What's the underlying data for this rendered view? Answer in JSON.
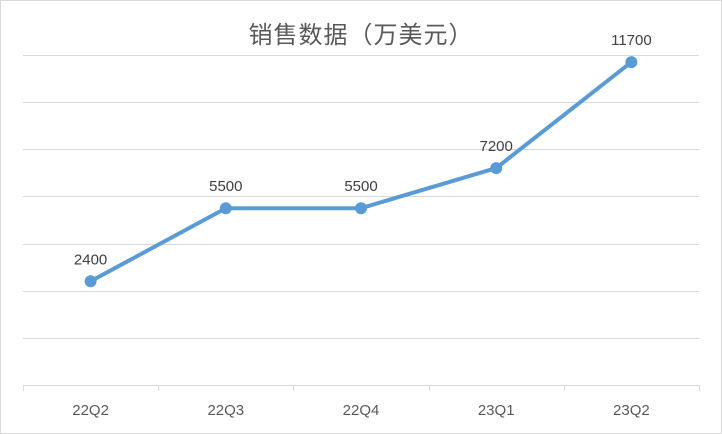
{
  "chart_data": {
    "type": "line",
    "title": "销售数据（万美元）",
    "categories": [
      "22Q2",
      "22Q3",
      "22Q4",
      "23Q1",
      "23Q2"
    ],
    "series": [
      {
        "values": [
          2400,
          5500,
          5500,
          7200,
          11700
        ]
      }
    ],
    "data_labels": [
      "2400",
      "5500",
      "5500",
      "7200",
      "11700"
    ],
    "xlabel": "",
    "ylabel": "",
    "ylim": [
      -2000,
      12000
    ],
    "y_grid_step": 2000,
    "grid": true,
    "y_axis_labels_shown": false,
    "legend": "none",
    "colors": {
      "line": "#5b9bd5",
      "grid": "#d9d9d9",
      "text": "#595959"
    }
  }
}
